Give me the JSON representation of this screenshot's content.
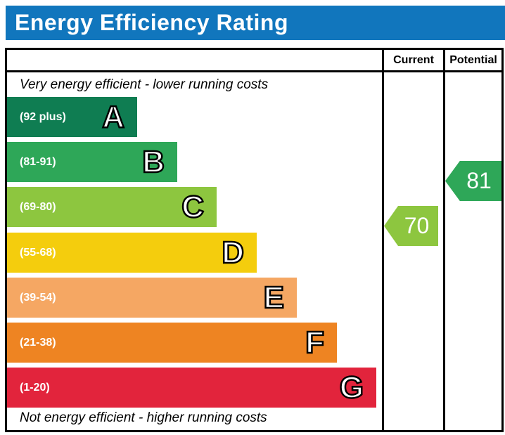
{
  "title": "Energy Efficiency Rating",
  "colors": {
    "title_bar": "#1176bd",
    "title_text": "#ffffff",
    "border": "#000000"
  },
  "columns": {
    "current": "Current",
    "potential": "Potential"
  },
  "captions": {
    "top": "Very energy efficient - lower running costs",
    "bottom": "Not energy efficient - higher running costs"
  },
  "chart_data": {
    "type": "bar",
    "title": "Energy Efficiency Rating",
    "bands": [
      {
        "letter": "A",
        "range": "(92 plus)",
        "min": 92,
        "max": 100,
        "color": "#0f7d52"
      },
      {
        "letter": "B",
        "range": "(81-91)",
        "min": 81,
        "max": 91,
        "color": "#2ea758"
      },
      {
        "letter": "C",
        "range": "(69-80)",
        "min": 69,
        "max": 80,
        "color": "#8dc63f"
      },
      {
        "letter": "D",
        "range": "(55-68)",
        "min": 55,
        "max": 68,
        "color": "#f4cd0d"
      },
      {
        "letter": "E",
        "range": "(39-54)",
        "min": 39,
        "max": 54,
        "color": "#f5a763"
      },
      {
        "letter": "F",
        "range": "(21-38)",
        "min": 21,
        "max": 38,
        "color": "#ee8422"
      },
      {
        "letter": "G",
        "range": "(1-20)",
        "min": 1,
        "max": 20,
        "color": "#e2243c"
      }
    ],
    "current": {
      "value": 70,
      "band": "C",
      "color": "#8dc63f"
    },
    "potential": {
      "value": 81,
      "band": "B",
      "color": "#2ea758"
    }
  }
}
